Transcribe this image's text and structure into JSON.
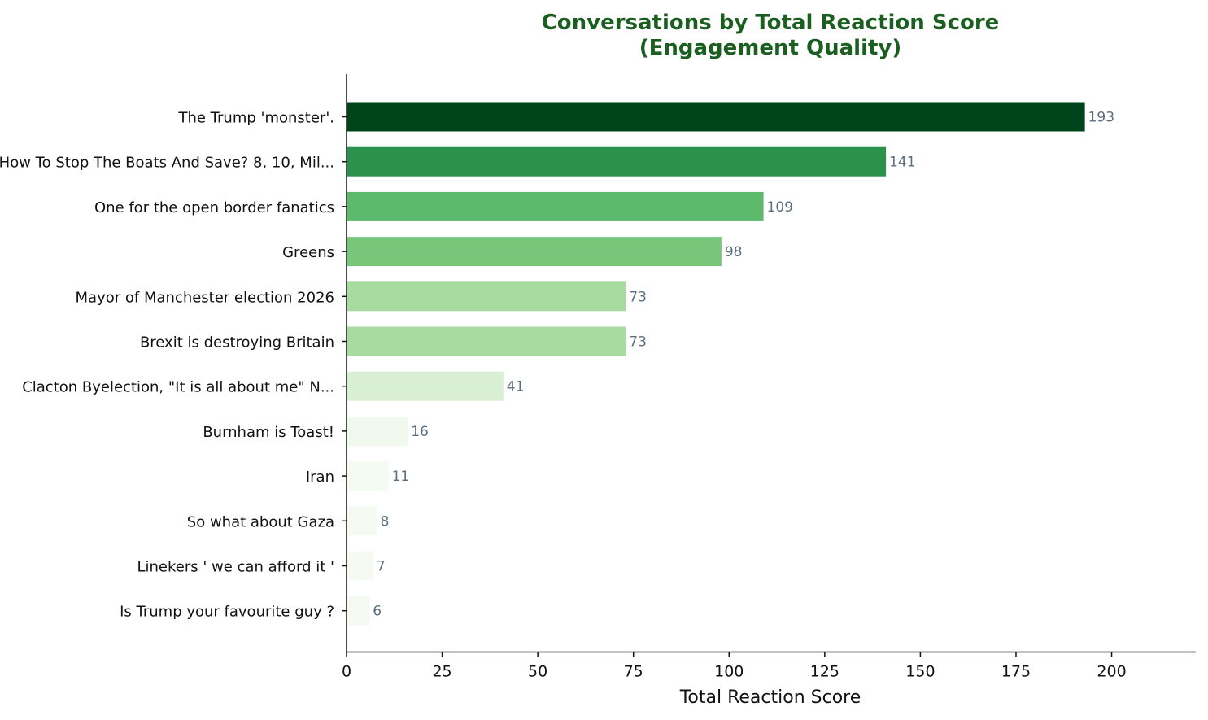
{
  "chart_data": {
    "type": "bar",
    "orientation": "horizontal",
    "title_line1": "Conversations by Total Reaction Score",
    "title_line2": "(Engagement Quality)",
    "xlabel": "Total Reaction Score",
    "ylabel": "",
    "xlim": [
      0,
      222
    ],
    "xticks": [
      0,
      25,
      50,
      75,
      100,
      125,
      150,
      175,
      200
    ],
    "grid": false,
    "legend": "none",
    "categories": [
      "The Trump 'monster'.",
      "How To Stop The Boats And Save? 8, 10, Mil...",
      "One for the open border fanatics",
      "Greens",
      "Mayor of Manchester election 2026",
      "Brexit is destroying Britain",
      "Clacton Byelection, \"It is all about me\" N...",
      "Burnham is Toast!",
      "Iran",
      "So what about Gaza",
      "Linekers ' we can afford it '",
      "Is Trump your favourite guy ?"
    ],
    "values": [
      193,
      141,
      109,
      98,
      73,
      73,
      41,
      16,
      11,
      8,
      7,
      6
    ],
    "colors": [
      "#00441b",
      "#2a924a",
      "#5db96b",
      "#78c679",
      "#a8dba0",
      "#a8dba0",
      "#d8efd3",
      "#f1f9ee",
      "#f4fbf2",
      "#f5fbf3",
      "#f5fbf3",
      "#f5fbf3"
    ],
    "title_color": "#1a5e20",
    "value_label_color": "#5a6e80"
  }
}
